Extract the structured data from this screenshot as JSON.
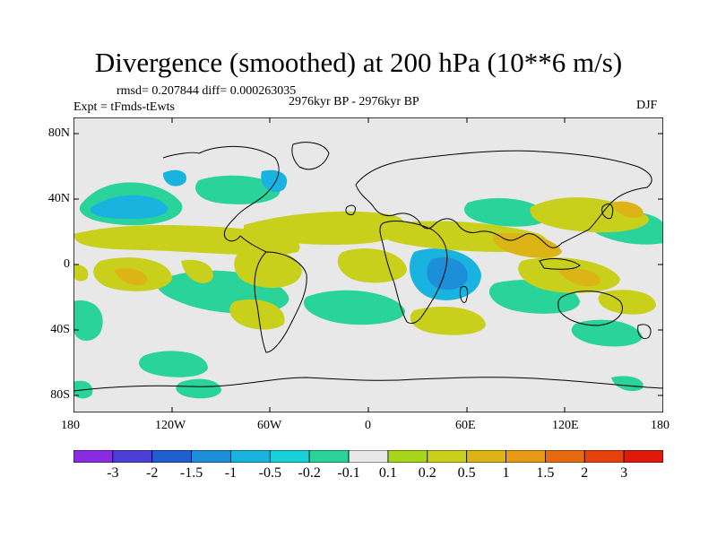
{
  "title": "Divergence (smoothed) at 200 hPa (10**6 m/s)",
  "stats": "rmsd= 0.207844 diff= 0.000263035",
  "experiment": "Expt = tFmds-tEwts",
  "period": "2976kyr BP - 2976kyr BP",
  "season": "DJF",
  "x_ticks": [
    "180",
    "120W",
    "60W",
    "0",
    "60E",
    "120E",
    "180"
  ],
  "y_ticks": [
    "80N",
    "40N",
    "0",
    "40S",
    "80S"
  ],
  "colorbar": {
    "colors": [
      "#8a2be2",
      "#4b3fd8",
      "#1f5fd0",
      "#1d8fd8",
      "#19b3e0",
      "#18d0d8",
      "#2ad39a",
      "#e8e8e8",
      "#a8d61a",
      "#c8d01c",
      "#dcb416",
      "#e89a14",
      "#e86a10",
      "#e8420c",
      "#e01a0a"
    ],
    "labels": [
      "-3",
      "-2",
      "-1.5",
      "-1",
      "-0.5",
      "-0.2",
      "-0.1",
      "0.1",
      "0.2",
      "0.5",
      "1",
      "1.5",
      "2",
      "3"
    ]
  },
  "colors": {
    "background": "#e8e8e8",
    "positive": "#c8d01c",
    "strong_positive": "#dcb416",
    "negative": "#19b3e0",
    "strong_negative": "#1d8fd8",
    "weak_negative": "#2ad39a",
    "coast": "#000000"
  }
}
